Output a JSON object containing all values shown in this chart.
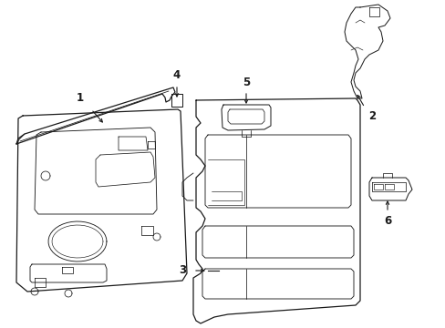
{
  "background_color": "#ffffff",
  "line_color": "#1a1a1a",
  "line_width": 0.9,
  "label_fontsize": 8.5,
  "figsize": [
    4.89,
    3.6
  ],
  "dpi": 100
}
